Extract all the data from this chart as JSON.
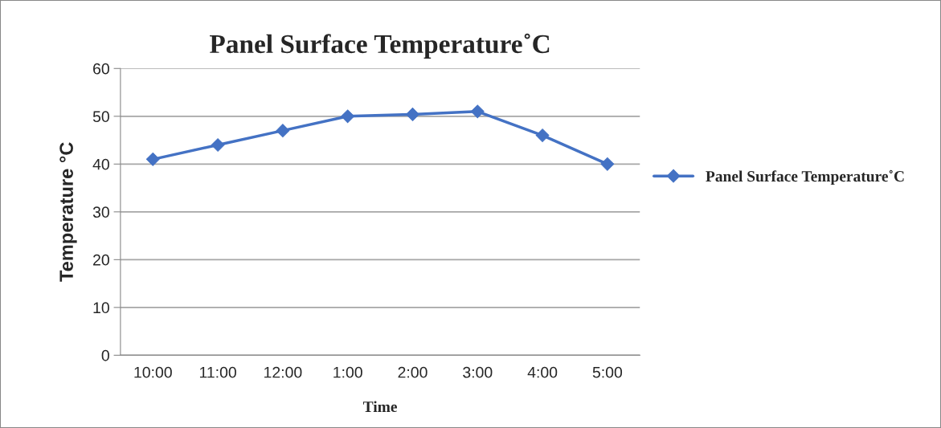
{
  "chart_data": {
    "type": "line",
    "title": "Panel Surface Temperature˚C",
    "xlabel": "Time",
    "ylabel": "Temperature °C",
    "categories": [
      "10:00",
      "11:00",
      "12:00",
      "1:00",
      "2:00",
      "3:00",
      "4:00",
      "5:00"
    ],
    "series": [
      {
        "name": "Panel Surface Temperature˚C",
        "color": "#4472c4",
        "values": [
          41,
          44,
          47,
          50,
          50.4,
          51,
          46,
          40
        ]
      }
    ],
    "ylim": [
      0,
      60
    ],
    "yticks": [
      0,
      10,
      20,
      30,
      40,
      50,
      60
    ],
    "grid": "y",
    "legend": "right",
    "marker": "diamond",
    "line_style": "solid"
  }
}
